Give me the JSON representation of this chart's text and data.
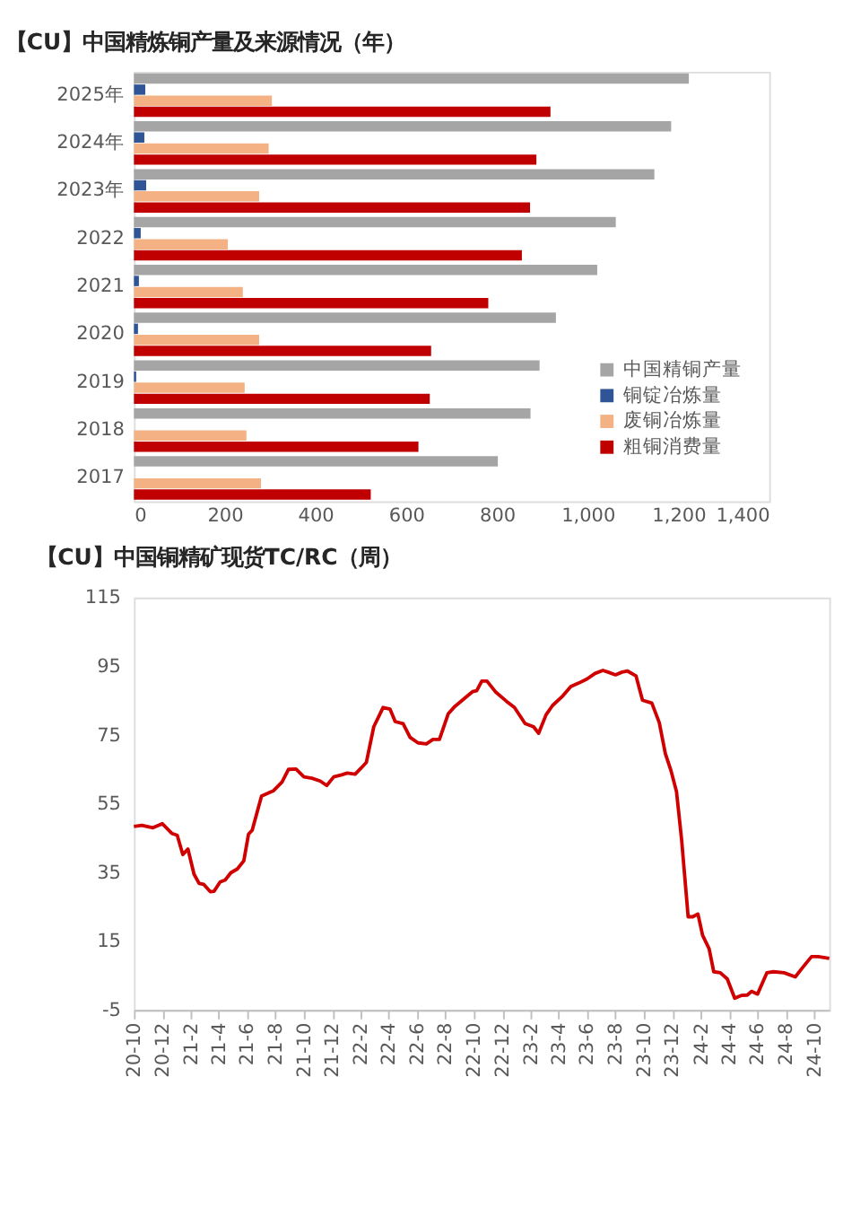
{
  "chart_data": [
    {
      "type": "bar",
      "orientation": "horizontal",
      "title": "【CU】中国精炼铜产量及来源情况（年）",
      "categories": [
        "2025年",
        "2024年",
        "2023年",
        "2022",
        "2021",
        "2020",
        "2019",
        "2018",
        "2017"
      ],
      "series": [
        {
          "name": "中国精铜产量",
          "color": "#a5a5a5",
          "values": [
            1223,
            1184,
            1147,
            1062,
            1021,
            930,
            894,
            874,
            802
          ]
        },
        {
          "name": "铜锭冶炼量",
          "color": "#2f5597",
          "values": [
            25,
            23,
            27,
            15,
            11,
            9,
            5,
            null,
            null
          ]
        },
        {
          "name": "废铜冶炼量",
          "color": "#f4b183",
          "values": [
            304,
            297,
            276,
            207,
            240,
            276,
            244,
            248,
            280
          ]
        },
        {
          "name": "粗铜消费量",
          "color": "#c00000",
          "values": [
            918,
            887,
            873,
            855,
            781,
            655,
            652,
            627,
            522
          ]
        }
      ],
      "xlim": [
        0,
        1400
      ],
      "xticks": [
        0,
        200,
        400,
        600,
        800,
        {
          "value": 1000,
          "label": "1,000"
        },
        {
          "value": 1200,
          "label": "1,200"
        },
        {
          "value": 1400,
          "label": "1,400"
        }
      ],
      "legend": "bottom right",
      "grid": false
    },
    {
      "type": "line",
      "title": "【CU】中国铜精矿现货TC/RC（周）",
      "x": [
        "2020-10-01",
        "2020-10-18",
        "2020-11-11",
        "2020-12-01",
        "2020-12-21",
        "2021-01-02",
        "2021-01-14",
        "2021-01-25",
        "2021-02-07",
        "2021-02-18",
        "2021-02-28",
        "2021-03-14",
        "2021-03-22",
        "2021-04-04",
        "2021-04-15",
        "2021-04-27",
        "2021-05-11",
        "2021-05-25",
        "2021-06-04",
        "2021-06-12",
        "2021-07-02",
        "2021-07-28",
        "2021-08-15",
        "2021-08-29",
        "2021-09-14",
        "2021-10-01",
        "2021-10-18",
        "2021-11-05",
        "2021-11-19",
        "2021-12-04",
        "2021-12-21",
        "2022-01-02",
        "2022-01-19",
        "2022-02-01",
        "2022-02-12",
        "2022-02-28",
        "2022-03-20",
        "2022-04-04",
        "2022-04-15",
        "2022-05-02",
        "2022-05-17",
        "2022-06-03",
        "2022-06-21",
        "2022-07-05",
        "2022-07-19",
        "2022-08-07",
        "2022-08-21",
        "2022-09-14",
        "2022-09-28",
        "2022-10-07",
        "2022-10-18",
        "2022-10-29",
        "2022-11-16",
        "2022-12-10",
        "2022-12-27",
        "2023-01-19",
        "2023-02-06",
        "2023-02-17",
        "2023-03-05",
        "2023-03-19",
        "2023-04-10",
        "2023-04-27",
        "2023-05-14",
        "2023-06-01",
        "2023-06-18",
        "2023-07-05",
        "2023-07-16",
        "2023-08-01",
        "2023-08-15",
        "2023-08-27",
        "2023-09-14",
        "2023-09-28",
        "2023-10-18",
        "2023-11-03",
        "2023-11-16",
        "2023-11-28",
        "2023-12-10",
        "2023-12-21",
        "2024-01-04",
        "2024-01-14",
        "2024-01-25",
        "2024-02-04",
        "2024-02-18",
        "2024-02-28",
        "2024-03-13",
        "2024-03-28",
        "2024-04-13",
        "2024-04-27",
        "2024-05-10",
        "2024-05-19",
        "2024-06-01",
        "2024-06-21",
        "2024-07-05",
        "2024-07-28",
        "2024-08-21",
        "2024-09-08",
        "2024-09-25",
        "2024-10-09",
        "2024-11-02"
      ],
      "series": [
        {
          "color": "#d00000",
          "values": [
            48.4,
            48.7,
            48.0,
            49.2,
            46.4,
            45.8,
            40.2,
            41.8,
            34.5,
            31.8,
            31.5,
            29.4,
            29.5,
            32.2,
            32.8,
            34.9,
            36.0,
            38.4,
            46.1,
            47.3,
            57.2,
            58.8,
            61.3,
            65.0,
            65.1,
            62.8,
            62.4,
            61.6,
            60.3,
            62.8,
            63.4,
            63.9,
            63.6,
            65.4,
            67.0,
            77.4,
            83.0,
            82.5,
            78.9,
            78.3,
            74.3,
            72.7,
            72.4,
            73.7,
            73.7,
            81.2,
            83.3,
            86.0,
            87.6,
            87.9,
            90.7,
            90.7,
            87.6,
            84.8,
            83.0,
            78.3,
            77.4,
            75.5,
            80.9,
            83.6,
            86.4,
            89.1,
            90.1,
            91.3,
            92.9,
            93.8,
            93.3,
            92.5,
            93.3,
            93.6,
            92.2,
            85.1,
            84.3,
            78.6,
            69.6,
            64.7,
            58.5,
            44.5,
            22.1,
            22.1,
            22.9,
            16.7,
            12.8,
            6.1,
            5.8,
            4.0,
            -1.6,
            -0.8,
            -0.7,
            0.4,
            -0.4,
            5.8,
            6.1,
            5.8,
            4.6,
            7.7,
            10.5,
            10.5,
            10.0
          ]
        }
      ],
      "xlim": [
        "2020-10-01",
        "2024-11-02"
      ],
      "xticks": [
        {
          "value": "2020-10",
          "label": "20-10"
        },
        {
          "value": "2020-12",
          "label": "20-12"
        },
        {
          "value": "2021-02",
          "label": "21-2"
        },
        {
          "value": "2021-04",
          "label": "21-4"
        },
        {
          "value": "2021-06",
          "label": "21-6"
        },
        {
          "value": "2021-08",
          "label": "21-8"
        },
        {
          "value": "2021-10",
          "label": "21-10"
        },
        {
          "value": "2021-12",
          "label": "21-12"
        },
        {
          "value": "2022-02",
          "label": "22-2"
        },
        {
          "value": "2022-04",
          "label": "22-4"
        },
        {
          "value": "2022-06",
          "label": "22-6"
        },
        {
          "value": "2022-08",
          "label": "22-8"
        },
        {
          "value": "2022-10",
          "label": "22-10"
        },
        {
          "value": "2022-12",
          "label": "22-12"
        },
        {
          "value": "2023-02",
          "label": "23-2"
        },
        {
          "value": "2023-04",
          "label": "23-4"
        },
        {
          "value": "2023-06",
          "label": "23-6"
        },
        {
          "value": "2023-08",
          "label": "23-8"
        },
        {
          "value": "2023-10",
          "label": "23-10"
        },
        {
          "value": "2023-12",
          "label": "23-12"
        },
        {
          "value": "2024-02",
          "label": "24-2"
        },
        {
          "value": "2024-04",
          "label": "24-4"
        },
        {
          "value": "2024-06",
          "label": "24-6"
        },
        {
          "value": "2024-08",
          "label": "24-8"
        },
        {
          "value": "2024-10",
          "label": "24-10"
        }
      ],
      "ylim": [
        -5,
        115
      ],
      "yticks": [
        -5,
        15,
        35,
        55,
        75,
        95,
        115
      ],
      "legend": false,
      "grid": false,
      "marker": "none",
      "line_style": "solid"
    }
  ]
}
